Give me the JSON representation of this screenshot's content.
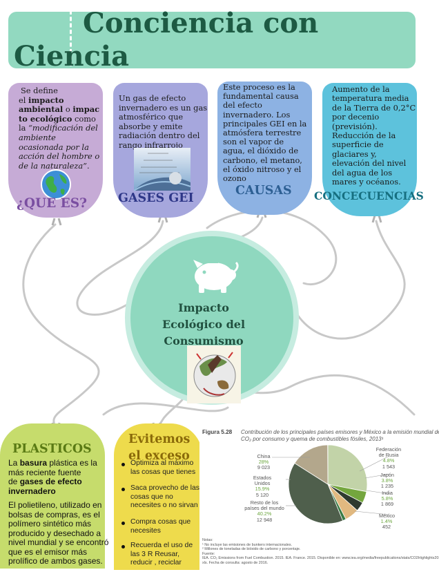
{
  "header": {
    "title_line1": "Conciencia con",
    "title_line2": "Ciencia"
  },
  "cards": {
    "que_es": {
      "text_parts": [
        "Se define",
        "el ",
        "impacto",
        " ambiental",
        " o ",
        "impac",
        "to ecológico",
        " como",
        "la ",
        "“modificación del",
        "ambiente",
        "ocasionada por la",
        "acción del hombre o",
        "de la naturaleza”",
        "."
      ],
      "title": "¿QUE ES?"
    },
    "gases": {
      "lines": [
        "Un gas de efecto",
        "invernadero es un gas",
        "atmosférico que",
        "absorbe y emite",
        "radiación dentro del",
        "rango infrarrojo"
      ],
      "title": "GASES GEI"
    },
    "causas": {
      "lines": [
        "Este proceso es la",
        "fundamental causa",
        "del efecto",
        "invernadero. Los",
        "principales GEI en la",
        "atmósfera terrestre",
        "son el vapor de",
        "agua, el dióxido de",
        "carbono, el metano,",
        "el óxido nitroso y el",
        "ozono"
      ],
      "title": "CAUSAS"
    },
    "consecuencias": {
      "lines": [
        "Aumento de la",
        "temperatura media",
        "de la Tierra de 0,2°C",
        "por decenio",
        "(previsión).",
        "Reducción de la",
        "superficie de",
        "glaciares y,",
        "elevación del nivel",
        "del agua de los",
        "mares y océanos."
      ],
      "title": "CONCECUENCIAS"
    }
  },
  "center": {
    "line1": "Impacto",
    "line2": "Ecológico del",
    "line3": "Consumismo"
  },
  "plasticos": {
    "title": "PLASTICOS",
    "p1_parts": [
      "La ",
      "basura",
      " plástica es la",
      "más reciente fuente",
      "de ",
      "gases de efecto",
      "invernadero"
    ],
    "p2_lines": [
      "El polietileno, utilizado en",
      "bolsas de compras, es el",
      "polímero sintético más",
      "producido y desechado a",
      "nivel mundial y se encontró",
      "que es el emisor más",
      "prolífico de ambos gases."
    ]
  },
  "evitemos": {
    "title_line1": "Evitemos",
    "title_line2": "el exceso",
    "items": [
      [
        "Optimiza al máximo",
        "las cosas que tienes"
      ],
      [
        "Saca provecho de las",
        "cosas que no",
        "necesites o no sirvan"
      ],
      [
        "Compra cosas que",
        "necesites"
      ],
      [
        "Recuerda el uso de",
        "las 3 R Reusar,",
        "reducir , reciclar"
      ]
    ]
  },
  "figure": {
    "label": "Figura 5.28",
    "caption_line1": "Contribución de los principales países emisores y México a la emisión mundial de",
    "caption_line2": "CO₂ por consumo y quema de combustibles fósiles, 2013¹",
    "notes": [
      "Notas:",
      "¹ No incluye las emisiones de bunkers internacionales.",
      "² Millones de toneladas de bióxido de carbono y porcentaje.",
      "Fuente:",
      "IEA. CO₂ Emissions from Fuel Combustion. 2015. IEA. France. 2015. Disponible en: www.iea.org/media/freepublications/stats/CO2Highlights2015Excelfile.",
      "xls. Fecha de consulta: agosto de 2016."
    ]
  },
  "chart_data": {
    "type": "pie",
    "title": "",
    "slices": [
      {
        "name": "China",
        "percent": "28%",
        "value": "9 023",
        "color": "#c2d3a8"
      },
      {
        "name": "Federación de Rusia",
        "percent": "4.8%",
        "value": "1 543",
        "color": "#74a63e"
      },
      {
        "name": "Japón",
        "percent": "3.8%",
        "value": "1 235",
        "color": "#2f3a2f"
      },
      {
        "name": "India",
        "percent": "5.8%",
        "value": "1 869",
        "color": "#e1b980"
      },
      {
        "name": "México",
        "percent": "1.4%",
        "value": "452",
        "color": "#3a7b45"
      },
      {
        "name": "Resto de los países del mundo",
        "percent": "40.2%",
        "value": "12 948",
        "color": "#4f5f4c"
      },
      {
        "name": "Estados Unidos",
        "percent": "15.9%",
        "value": "5 120",
        "color": "#b3a78c"
      }
    ]
  },
  "colors": {
    "header_bg": "#92d9c0",
    "title": "#1d5a43",
    "que_es_bg": "#c6abd6",
    "gases_bg": "#a6a7dd",
    "causas_bg": "#8db2e3",
    "consecuencias_bg": "#5dc2dc",
    "center_bg": "#8fd8bf",
    "plasticos_bg": "#c6dc6c",
    "evitemos_bg": "#eedb4c"
  },
  "icons": [
    "globe-icon",
    "piggy-bank-icon",
    "earth-consumerism-illustration",
    "atmosphere-diagram-image"
  ]
}
